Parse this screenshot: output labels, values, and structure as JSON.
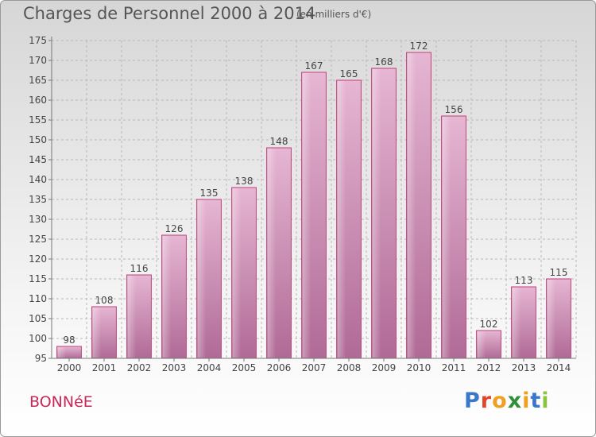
{
  "header": {
    "title": "Charges de Personnel 2000 à 2014",
    "subtitle": "(en milliers d'€)"
  },
  "footer": {
    "town": "BONNéE",
    "logo": "Proxiti"
  },
  "colors": {
    "bar": "#d9a0c4",
    "bar_edge": "#c2407a",
    "axis": "#777777",
    "grid": "#b8b8b8",
    "town_text": "#c8285a",
    "logo_letters": [
      "#3b78c9",
      "#e0462b",
      "#f0a020",
      "#2f8f3a",
      "#f0a020",
      "#3b78c9",
      "#8bc53f"
    ]
  },
  "chart_data": {
    "type": "bar",
    "title": "Charges de Personnel 2000 à 2014",
    "subtitle": "(en milliers d'€)",
    "categories": [
      "2000",
      "2001",
      "2002",
      "2003",
      "2004",
      "2005",
      "2006",
      "2007",
      "2008",
      "2009",
      "2010",
      "2011",
      "2012",
      "2013",
      "2014"
    ],
    "values": [
      98,
      108,
      116,
      126,
      135,
      138,
      148,
      167,
      165,
      168,
      172,
      156,
      102,
      113,
      115
    ],
    "ylim": [
      95,
      175
    ],
    "yticks": [
      95,
      100,
      105,
      110,
      115,
      120,
      125,
      130,
      135,
      140,
      145,
      150,
      155,
      160,
      165,
      170,
      175
    ],
    "grid": true,
    "xlabel": "",
    "ylabel": ""
  }
}
